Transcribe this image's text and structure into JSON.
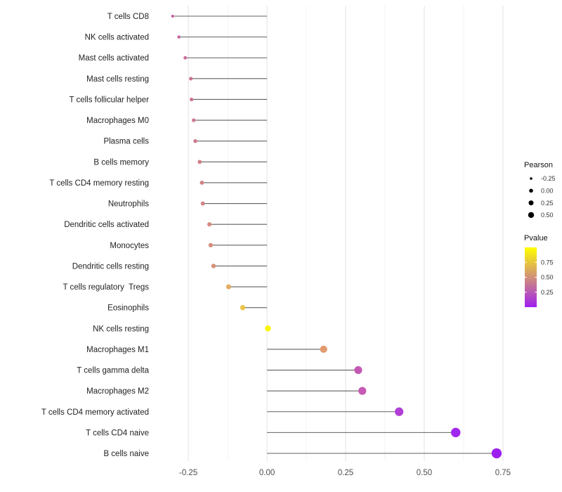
{
  "chart_data": {
    "type": "lollipop",
    "orientation": "horizontal",
    "title": "",
    "xlabel": "",
    "ylabel": "",
    "x_axis": {
      "ticks": [
        -0.25,
        0,
        0.25,
        0.5,
        0.75
      ],
      "tick_labels": [
        "-0.25",
        "0.00",
        "0.25",
        "0.50",
        "0.75"
      ],
      "minor_ticks": [
        -0.125,
        0.125,
        0.375,
        0.625
      ],
      "xlim": [
        -0.3575,
        0.7815
      ]
    },
    "baseline": 0,
    "grid": "vertical major and minor, light gray, no panel border",
    "categories": [
      "T cells CD8",
      "NK cells activated",
      "Mast cells activated",
      "Mast cells resting",
      "T cells follicular helper",
      "Macrophages M0",
      "Plasma cells",
      "B cells memory",
      "T cells CD4 memory resting",
      "Neutrophils",
      "Dendritic cells activated",
      "Monocytes",
      "Dendritic cells resting",
      "T cells regulatory  Tregs",
      "Eosinophils",
      "NK cells resting",
      "Macrophages M1",
      "T cells gamma delta",
      "Macrophages M2",
      "T cells CD4 memory activated",
      "T cells CD4 naive",
      "B cells naive"
    ],
    "points": [
      {
        "label": "T cells CD8",
        "pearson": -0.3,
        "color": "#C2609F"
      },
      {
        "label": "NK cells activated",
        "pearson": -0.28,
        "color": "#C364A0"
      },
      {
        "label": "Mast cells activated",
        "pearson": -0.26,
        "color": "#C96F9A"
      },
      {
        "label": "Mast cells resting",
        "pearson": -0.242,
        "color": "#CC7694"
      },
      {
        "label": "T cells follicular helper",
        "pearson": -0.24,
        "color": "#CC7694"
      },
      {
        "label": "Macrophages M0",
        "pearson": -0.233,
        "color": "#CE7A8F"
      },
      {
        "label": "Plasma cells",
        "pearson": -0.228,
        "color": "#CE7B8E"
      },
      {
        "label": "B cells memory",
        "pearson": -0.214,
        "color": "#D07F8A"
      },
      {
        "label": "T cells CD4 memory resting",
        "pearson": -0.207,
        "color": "#D18286"
      },
      {
        "label": "Neutrophils",
        "pearson": -0.204,
        "color": "#D18285"
      },
      {
        "label": "Dendritic cells activated",
        "pearson": -0.183,
        "color": "#D48B7E"
      },
      {
        "label": "Monocytes",
        "pearson": -0.179,
        "color": "#D48C7D"
      },
      {
        "label": "Dendritic cells resting",
        "pearson": -0.17,
        "color": "#D69177"
      },
      {
        "label": "T cells regulatory  Tregs",
        "pearson": -0.122,
        "color": "#E3AC60"
      },
      {
        "label": "Eosinophils",
        "pearson": -0.077,
        "color": "#ECC44E"
      },
      {
        "label": "NK cells resting",
        "pearson": 0.003,
        "color": "#FAF50A"
      },
      {
        "label": "Macrophages M1",
        "pearson": 0.18,
        "color": "#E39B6E"
      },
      {
        "label": "T cells gamma delta",
        "pearson": 0.29,
        "color": "#C458B2"
      },
      {
        "label": "Macrophages M2",
        "pearson": 0.303,
        "color": "#C65AB4"
      },
      {
        "label": "T cells CD4 memory activated",
        "pearson": 0.42,
        "color": "#B13FD6"
      },
      {
        "label": "T cells CD4 naive",
        "pearson": 0.6,
        "color": "#9F28EE"
      },
      {
        "label": "B cells naive",
        "pearson": 0.73,
        "color": "#9C1FF0"
      }
    ],
    "legend_size": {
      "title": "Pearson",
      "dot_color": "#000000",
      "entries": [
        {
          "label": "-0.25",
          "value": -0.25
        },
        {
          "label": "0.00",
          "value": 0
        },
        {
          "label": "0.25",
          "value": 0.25
        },
        {
          "label": "0.50",
          "value": 0.5
        }
      ]
    },
    "legend_color": {
      "title": "Pvalue",
      "low_color": "#A020F0",
      "high_color": "#FFFF00",
      "range": [
        0,
        1
      ],
      "ticks": [
        {
          "label": "0.75",
          "value": 0.75
        },
        {
          "label": "0.50",
          "value": 0.5
        },
        {
          "label": "0.25",
          "value": 0.25
        }
      ]
    },
    "style": {
      "background": "#FFFFFF",
      "grid_major_color": "#E3E3E3",
      "grid_minor_color": "#F0F0F0",
      "stem_color": "#454545",
      "axis_text_color": "#4D4D4D",
      "category_text_color": "#1F1F1F",
      "legend_text_color": "#333333"
    }
  }
}
